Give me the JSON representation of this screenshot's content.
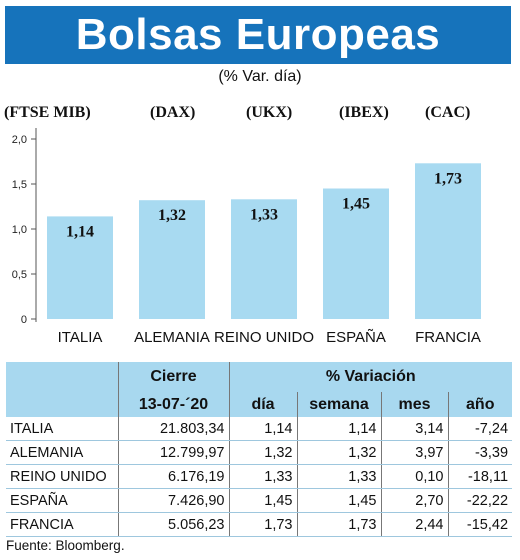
{
  "header": {
    "title": "Bolsas Europeas",
    "subtitle": "(% Var. día)"
  },
  "indices": [
    "(FTSE MIB)",
    "(DAX)",
    "(UKX)",
    "(IBEX)",
    "(CAC)"
  ],
  "colors": {
    "banner": "#1673bb",
    "bar": "#a8daf1",
    "table_header": "#a8d8ef"
  },
  "chart_data": {
    "type": "bar",
    "categories": [
      "ITALIA",
      "ALEMANIA",
      "REINO UNIDO",
      "ESPAÑA",
      "FRANCIA"
    ],
    "values": [
      1.14,
      1.32,
      1.33,
      1.45,
      1.73
    ],
    "value_labels": [
      "1,14",
      "1,32",
      "1,33",
      "1,45",
      "1,73"
    ],
    "yticks": [
      0,
      0.5,
      1.0,
      1.5,
      2.0
    ],
    "ytick_labels": [
      "0",
      "0,5",
      "1,0",
      "1,5",
      "2,0"
    ],
    "ylim": [
      0,
      2.0
    ],
    "title": "Bolsas Europeas",
    "subtitle": "(% Var. día)",
    "xlabel": "",
    "ylabel": "",
    "grid": false
  },
  "table": {
    "group_headers": {
      "cierre": "Cierre",
      "variacion": "% Variación"
    },
    "sub_headers": {
      "date": "13-07-´20",
      "dia": "día",
      "semana": "semana",
      "mes": "mes",
      "ano": "año"
    },
    "rows": [
      {
        "country": "ITALIA",
        "cierre": "21.803,34",
        "dia": "1,14",
        "semana": "1,14",
        "mes": "3,14",
        "ano": "-7,24"
      },
      {
        "country": "ALEMANIA",
        "cierre": "12.799,97",
        "dia": "1,32",
        "semana": "1,32",
        "mes": "3,97",
        "ano": "-3,39"
      },
      {
        "country": "REINO UNIDO",
        "cierre": "6.176,19",
        "dia": "1,33",
        "semana": "1,33",
        "mes": "0,10",
        "ano": "-18,11"
      },
      {
        "country": "ESPAÑA",
        "cierre": "7.426,90",
        "dia": "1,45",
        "semana": "1,45",
        "mes": "2,70",
        "ano": "-22,22"
      },
      {
        "country": "FRANCIA",
        "cierre": "5.056,23",
        "dia": "1,73",
        "semana": "1,73",
        "mes": "2,44",
        "ano": "-15,42"
      }
    ]
  },
  "source": "Fuente: Bloomberg."
}
